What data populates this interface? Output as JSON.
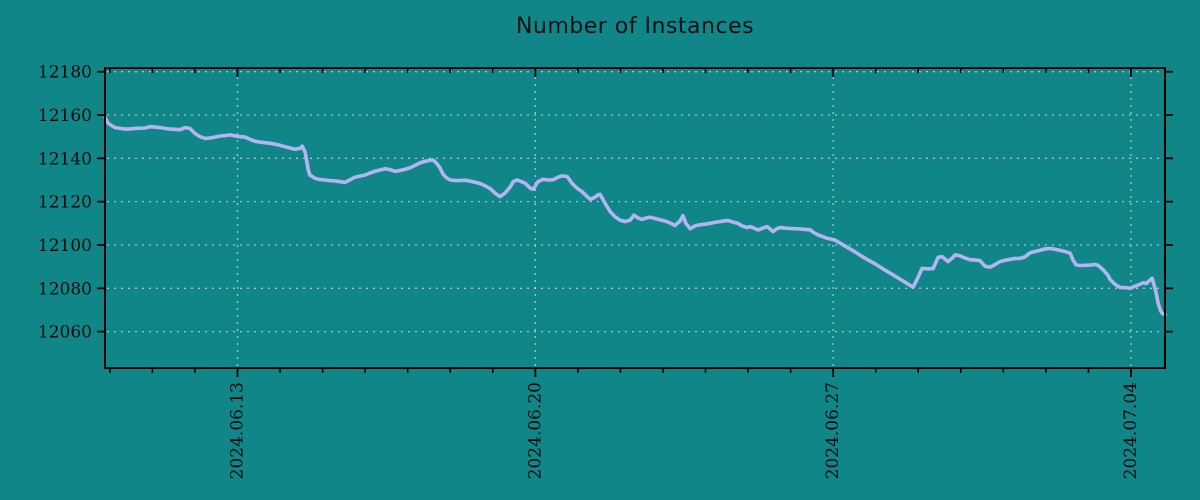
{
  "title": "Number of Instances",
  "colors": {
    "background": "#108688",
    "line": "#b4b4f2",
    "grid": "#c3d2d2",
    "axis": "#000000",
    "text": "#0a0a0a"
  },
  "chart_data": {
    "type": "line",
    "title": "Number of Instances",
    "xlabel": "",
    "ylabel": "",
    "legend": "none",
    "grid": "dotted gridlines at major ticks",
    "x_unit": "days since 2024-06-10",
    "xlim": [
      -0.114,
      24.8
    ],
    "ylim": [
      12043.2,
      12181.7
    ],
    "y_ticks": [
      12060,
      12080,
      12100,
      12120,
      12140,
      12160,
      12180
    ],
    "x_ticks": [
      {
        "t": 3,
        "label": "2024.06.13"
      },
      {
        "t": 10,
        "label": "2024.06.20"
      },
      {
        "t": 17,
        "label": "2024.06.27"
      },
      {
        "t": 24,
        "label": "2024.07.04"
      }
    ],
    "x_minor_step": 1,
    "series": [
      {
        "name": "instances",
        "color": "#b4b4f2",
        "points": [
          [
            -0.11,
            12158.8
          ],
          [
            -0.04,
            12156.2
          ],
          [
            0.05,
            12155.0
          ],
          [
            0.12,
            12154.2
          ],
          [
            0.24,
            12153.8
          ],
          [
            0.36,
            12153.5
          ],
          [
            0.47,
            12153.6
          ],
          [
            0.59,
            12153.8
          ],
          [
            0.71,
            12153.9
          ],
          [
            0.83,
            12154.0
          ],
          [
            0.94,
            12154.6
          ],
          [
            1.06,
            12154.4
          ],
          [
            1.18,
            12154.2
          ],
          [
            1.3,
            12153.8
          ],
          [
            1.41,
            12153.5
          ],
          [
            1.53,
            12153.4
          ],
          [
            1.65,
            12153.2
          ],
          [
            1.77,
            12154.2
          ],
          [
            1.88,
            12153.8
          ],
          [
            2.0,
            12151.5
          ],
          [
            2.12,
            12150.0
          ],
          [
            2.24,
            12149.2
          ],
          [
            2.35,
            12149.4
          ],
          [
            2.47,
            12149.8
          ],
          [
            2.59,
            12150.3
          ],
          [
            2.71,
            12150.5
          ],
          [
            2.82,
            12150.8
          ],
          [
            2.94,
            12150.4
          ],
          [
            3.06,
            12150.0
          ],
          [
            3.18,
            12149.8
          ],
          [
            3.29,
            12148.8
          ],
          [
            3.41,
            12147.9
          ],
          [
            3.53,
            12147.5
          ],
          [
            3.65,
            12147.2
          ],
          [
            3.76,
            12147.0
          ],
          [
            3.88,
            12146.5
          ],
          [
            4.0,
            12146.0
          ],
          [
            4.12,
            12145.3
          ],
          [
            4.23,
            12144.8
          ],
          [
            4.35,
            12144.2
          ],
          [
            4.47,
            12144.6
          ],
          [
            4.52,
            12145.6
          ],
          [
            4.59,
            12143.0
          ],
          [
            4.66,
            12135.0
          ],
          [
            4.7,
            12132.3
          ],
          [
            4.82,
            12130.8
          ],
          [
            4.94,
            12130.2
          ],
          [
            5.06,
            12130.0
          ],
          [
            5.17,
            12129.7
          ],
          [
            5.29,
            12129.6
          ],
          [
            5.41,
            12129.2
          ],
          [
            5.53,
            12128.9
          ],
          [
            5.64,
            12130.0
          ],
          [
            5.76,
            12131.3
          ],
          [
            5.88,
            12131.8
          ],
          [
            6.0,
            12132.3
          ],
          [
            6.11,
            12133.2
          ],
          [
            6.23,
            12134.0
          ],
          [
            6.35,
            12134.6
          ],
          [
            6.47,
            12135.2
          ],
          [
            6.58,
            12134.8
          ],
          [
            6.7,
            12134.0
          ],
          [
            6.82,
            12134.4
          ],
          [
            6.94,
            12135.0
          ],
          [
            7.05,
            12135.6
          ],
          [
            7.17,
            12136.7
          ],
          [
            7.29,
            12137.9
          ],
          [
            7.41,
            12138.6
          ],
          [
            7.53,
            12139.1
          ],
          [
            7.6,
            12139.2
          ],
          [
            7.69,
            12137.5
          ],
          [
            7.76,
            12135.6
          ],
          [
            7.83,
            12132.7
          ],
          [
            7.9,
            12131.2
          ],
          [
            8.0,
            12130.0
          ],
          [
            8.11,
            12129.8
          ],
          [
            8.23,
            12129.7
          ],
          [
            8.35,
            12129.9
          ],
          [
            8.47,
            12129.5
          ],
          [
            8.58,
            12129.0
          ],
          [
            8.7,
            12128.4
          ],
          [
            8.82,
            12127.3
          ],
          [
            8.94,
            12126.0
          ],
          [
            9.05,
            12124.0
          ],
          [
            9.17,
            12122.3
          ],
          [
            9.29,
            12124.0
          ],
          [
            9.41,
            12126.8
          ],
          [
            9.48,
            12129.2
          ],
          [
            9.57,
            12130.0
          ],
          [
            9.64,
            12129.5
          ],
          [
            9.76,
            12128.5
          ],
          [
            9.88,
            12126.2
          ],
          [
            9.95,
            12125.7
          ],
          [
            10.06,
            12129.2
          ],
          [
            10.18,
            12130.3
          ],
          [
            10.3,
            12130.0
          ],
          [
            10.42,
            12130.1
          ],
          [
            10.53,
            12131.3
          ],
          [
            10.63,
            12131.9
          ],
          [
            10.75,
            12131.6
          ],
          [
            10.86,
            12128.5
          ],
          [
            10.98,
            12126.2
          ],
          [
            11.1,
            12124.6
          ],
          [
            11.22,
            12122.3
          ],
          [
            11.29,
            12121.1
          ],
          [
            11.4,
            12122.0
          ],
          [
            11.47,
            12123.1
          ],
          [
            11.52,
            12123.4
          ],
          [
            11.64,
            12119.2
          ],
          [
            11.76,
            12115.4
          ],
          [
            11.87,
            12113.1
          ],
          [
            11.99,
            12111.5
          ],
          [
            12.11,
            12110.8
          ],
          [
            12.23,
            12111.5
          ],
          [
            12.32,
            12113.8
          ],
          [
            12.41,
            12112.5
          ],
          [
            12.51,
            12111.8
          ],
          [
            12.6,
            12112.4
          ],
          [
            12.7,
            12112.8
          ],
          [
            12.81,
            12112.2
          ],
          [
            12.93,
            12111.6
          ],
          [
            13.05,
            12111.0
          ],
          [
            13.17,
            12110.2
          ],
          [
            13.28,
            12109.0
          ],
          [
            13.4,
            12111.0
          ],
          [
            13.47,
            12113.5
          ],
          [
            13.54,
            12110.0
          ],
          [
            13.64,
            12107.5
          ],
          [
            13.75,
            12108.8
          ],
          [
            13.87,
            12109.3
          ],
          [
            13.99,
            12109.6
          ],
          [
            14.11,
            12110.0
          ],
          [
            14.22,
            12110.4
          ],
          [
            14.34,
            12110.8
          ],
          [
            14.46,
            12111.2
          ],
          [
            14.53,
            12111.3
          ],
          [
            14.65,
            12110.5
          ],
          [
            14.76,
            12110.0
          ],
          [
            14.86,
            12108.8
          ],
          [
            14.98,
            12108.0
          ],
          [
            15.05,
            12108.5
          ],
          [
            15.17,
            12107.5
          ],
          [
            15.24,
            12106.9
          ],
          [
            15.35,
            12107.8
          ],
          [
            15.45,
            12108.5
          ],
          [
            15.52,
            12107.3
          ],
          [
            15.59,
            12106.2
          ],
          [
            15.68,
            12107.5
          ],
          [
            15.75,
            12108.0
          ],
          [
            15.87,
            12107.8
          ],
          [
            15.99,
            12107.6
          ],
          [
            16.1,
            12107.5
          ],
          [
            16.22,
            12107.4
          ],
          [
            16.34,
            12107.2
          ],
          [
            16.46,
            12107.0
          ],
          [
            16.55,
            12105.6
          ],
          [
            16.65,
            12104.6
          ],
          [
            16.76,
            12103.8
          ],
          [
            16.86,
            12103.1
          ],
          [
            16.95,
            12102.7
          ],
          [
            17.04,
            12102.3
          ],
          [
            17.28,
            12099.5
          ],
          [
            17.52,
            12096.7
          ],
          [
            17.75,
            12093.9
          ],
          [
            17.99,
            12091.2
          ],
          [
            18.22,
            12088.4
          ],
          [
            18.46,
            12085.6
          ],
          [
            18.69,
            12082.8
          ],
          [
            18.88,
            12080.5
          ],
          [
            18.97,
            12084.0
          ],
          [
            19.09,
            12089.2
          ],
          [
            19.23,
            12089.0
          ],
          [
            19.35,
            12089.1
          ],
          [
            19.47,
            12094.3
          ],
          [
            19.56,
            12094.6
          ],
          [
            19.63,
            12093.5
          ],
          [
            19.7,
            12092.3
          ],
          [
            19.8,
            12094.0
          ],
          [
            19.87,
            12095.4
          ],
          [
            19.98,
            12095.0
          ],
          [
            20.1,
            12094.0
          ],
          [
            20.22,
            12093.2
          ],
          [
            20.34,
            12093.0
          ],
          [
            20.45,
            12092.8
          ],
          [
            20.57,
            12090.2
          ],
          [
            20.69,
            12089.8
          ],
          [
            20.81,
            12091.0
          ],
          [
            20.92,
            12092.3
          ],
          [
            21.04,
            12092.9
          ],
          [
            21.16,
            12093.4
          ],
          [
            21.28,
            12093.8
          ],
          [
            21.39,
            12093.8
          ],
          [
            21.51,
            12094.5
          ],
          [
            21.63,
            12096.4
          ],
          [
            21.75,
            12097.0
          ],
          [
            21.86,
            12097.5
          ],
          [
            21.98,
            12098.2
          ],
          [
            22.1,
            12098.4
          ],
          [
            22.22,
            12098.0
          ],
          [
            22.33,
            12097.5
          ],
          [
            22.45,
            12097.0
          ],
          [
            22.57,
            12096.2
          ],
          [
            22.64,
            12093.0
          ],
          [
            22.71,
            12090.8
          ],
          [
            22.8,
            12090.5
          ],
          [
            22.92,
            12090.6
          ],
          [
            23.04,
            12090.7
          ],
          [
            23.16,
            12091.0
          ],
          [
            23.23,
            12090.5
          ],
          [
            23.35,
            12088.5
          ],
          [
            23.46,
            12086.0
          ],
          [
            23.51,
            12084.0
          ],
          [
            23.63,
            12081.8
          ],
          [
            23.75,
            12080.3
          ],
          [
            23.86,
            12080.3
          ],
          [
            23.98,
            12080.0
          ],
          [
            24.1,
            12081.0
          ],
          [
            24.22,
            12081.9
          ],
          [
            24.29,
            12082.6
          ],
          [
            24.36,
            12082.2
          ],
          [
            24.43,
            12083.5
          ],
          [
            24.5,
            12084.6
          ],
          [
            24.55,
            12081.0
          ],
          [
            24.59,
            12078.0
          ],
          [
            24.64,
            12073.0
          ],
          [
            24.69,
            12070.0
          ],
          [
            24.73,
            12068.5
          ],
          [
            24.8,
            12067.7
          ]
        ]
      }
    ]
  }
}
